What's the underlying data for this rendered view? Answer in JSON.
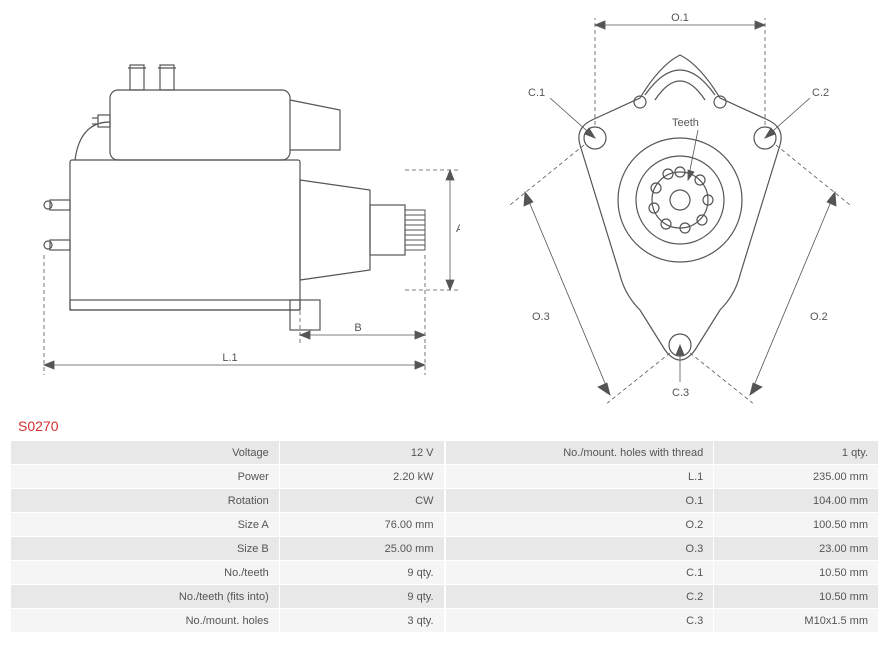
{
  "part_id": "S0270",
  "diagram": {
    "side": {
      "labels": {
        "A": "A",
        "B": "B",
        "L1": "L.1"
      },
      "stroke": "#555555",
      "dash": "4,3"
    },
    "front": {
      "labels": {
        "O1": "O.1",
        "O2": "O.2",
        "O3": "O.3",
        "C1": "C.1",
        "C2": "C.2",
        "C3": "C.3",
        "teeth": "Teeth"
      },
      "stroke": "#555555",
      "dash": "4,3"
    }
  },
  "specs_left": [
    {
      "label": "Voltage",
      "value": "12 V"
    },
    {
      "label": "Power",
      "value": "2.20 kW"
    },
    {
      "label": "Rotation",
      "value": "CW"
    },
    {
      "label": "Size A",
      "value": "76.00 mm"
    },
    {
      "label": "Size B",
      "value": "25.00 mm"
    },
    {
      "label": "No./teeth",
      "value": "9 qty."
    },
    {
      "label": "No./teeth (fits into)",
      "value": "9 qty."
    },
    {
      "label": "No./mount. holes",
      "value": "3 qty."
    }
  ],
  "specs_right": [
    {
      "label": "No./mount. holes with thread",
      "value": "1 qty."
    },
    {
      "label": "L.1",
      "value": "235.00 mm"
    },
    {
      "label": "O.1",
      "value": "104.00 mm"
    },
    {
      "label": "O.2",
      "value": "100.50 mm"
    },
    {
      "label": "O.3",
      "value": "23.00 mm"
    },
    {
      "label": "C.1",
      "value": "10.50 mm"
    },
    {
      "label": "C.2",
      "value": "10.50 mm"
    },
    {
      "label": "C.3",
      "value": "M10x1.5 mm"
    }
  ],
  "colors": {
    "row_odd": "#e8e8e8",
    "row_even": "#f5f5f5",
    "text": "#555555",
    "accent": "#d32f2f",
    "background": "#ffffff"
  }
}
